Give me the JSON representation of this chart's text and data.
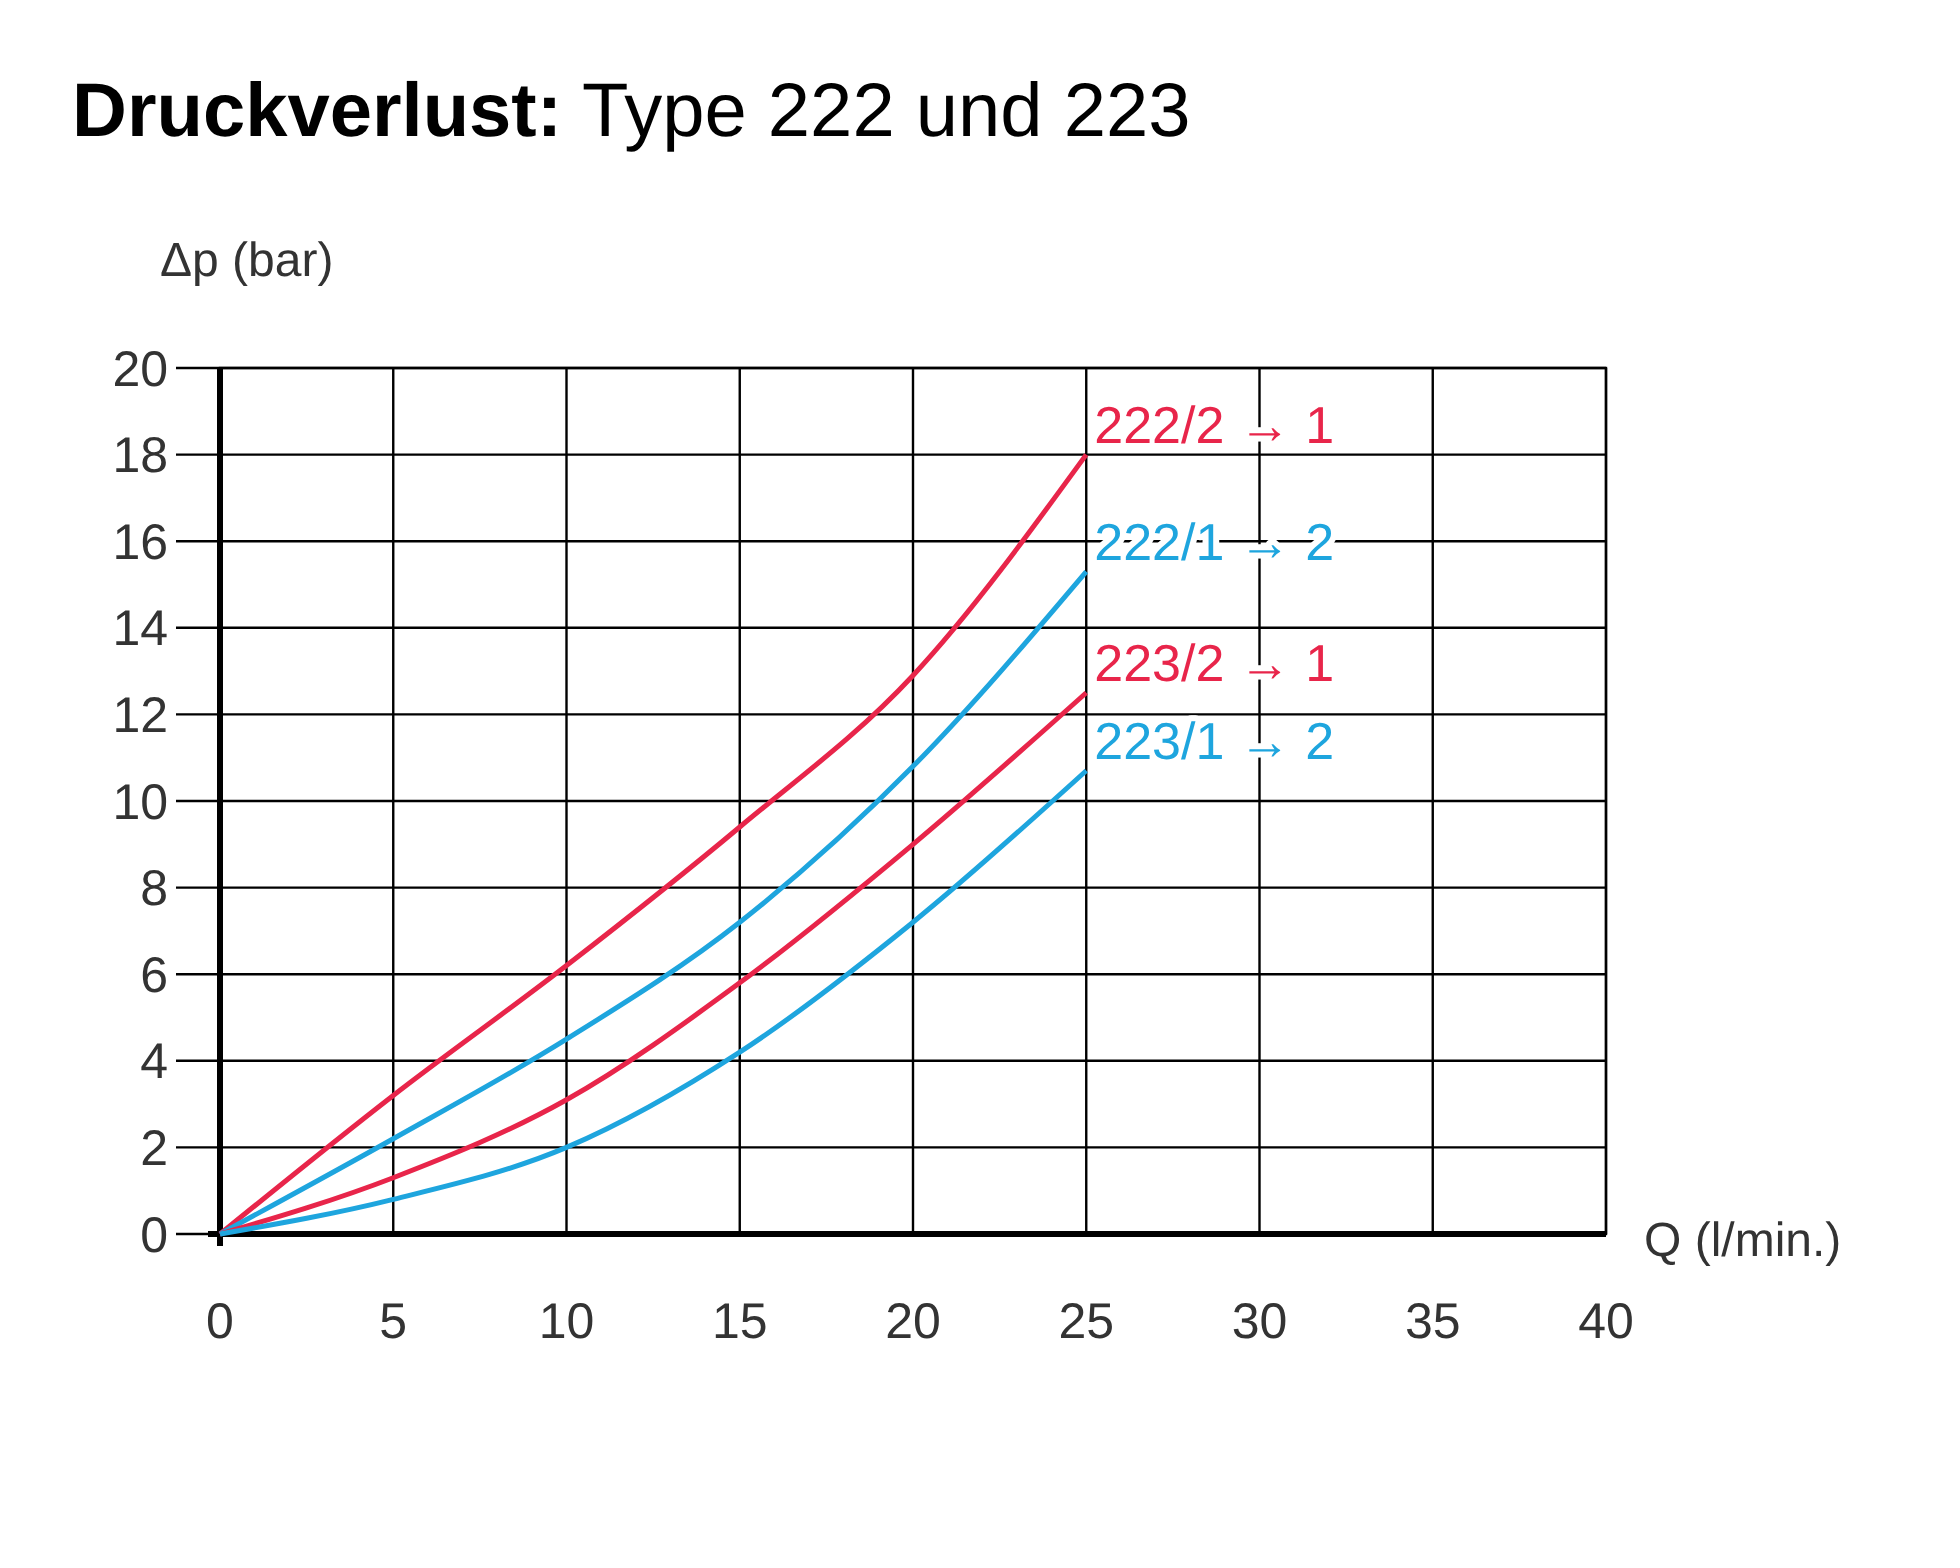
{
  "chart_data": {
    "type": "line",
    "title": "Druckverlust:",
    "subtitle": "Type 222 und 223",
    "xlabel": "Q (l/min.)",
    "ylabel": "Δp (bar)",
    "x": [
      0,
      5,
      10,
      15,
      20,
      25
    ],
    "series": [
      {
        "name": "222/2 → 1",
        "color": "#e8254a",
        "values": [
          0,
          3.2,
          6.2,
          9.4,
          12.9,
          18
        ]
      },
      {
        "name": "222/1 → 2",
        "color": "#1ea5de",
        "values": [
          0,
          2.2,
          4.5,
          7.2,
          10.8,
          15.3
        ]
      },
      {
        "name": "223/2 → 1",
        "color": "#e8254a",
        "values": [
          0,
          1.3,
          3.1,
          5.8,
          9.0,
          12.5
        ]
      },
      {
        "name": "223/1 → 2",
        "color": "#1ea5de",
        "values": [
          0,
          0.8,
          2.0,
          4.2,
          7.2,
          10.7
        ]
      }
    ],
    "xlim": [
      0,
      40
    ],
    "xticks": [
      0,
      5,
      10,
      15,
      20,
      25,
      30,
      35,
      40
    ],
    "ylim": [
      0,
      20
    ],
    "yticks": [
      0,
      2,
      4,
      6,
      8,
      10,
      12,
      14,
      16,
      18,
      20
    ],
    "grid": true,
    "legend": false,
    "marker": "none",
    "line_style": "solid"
  }
}
